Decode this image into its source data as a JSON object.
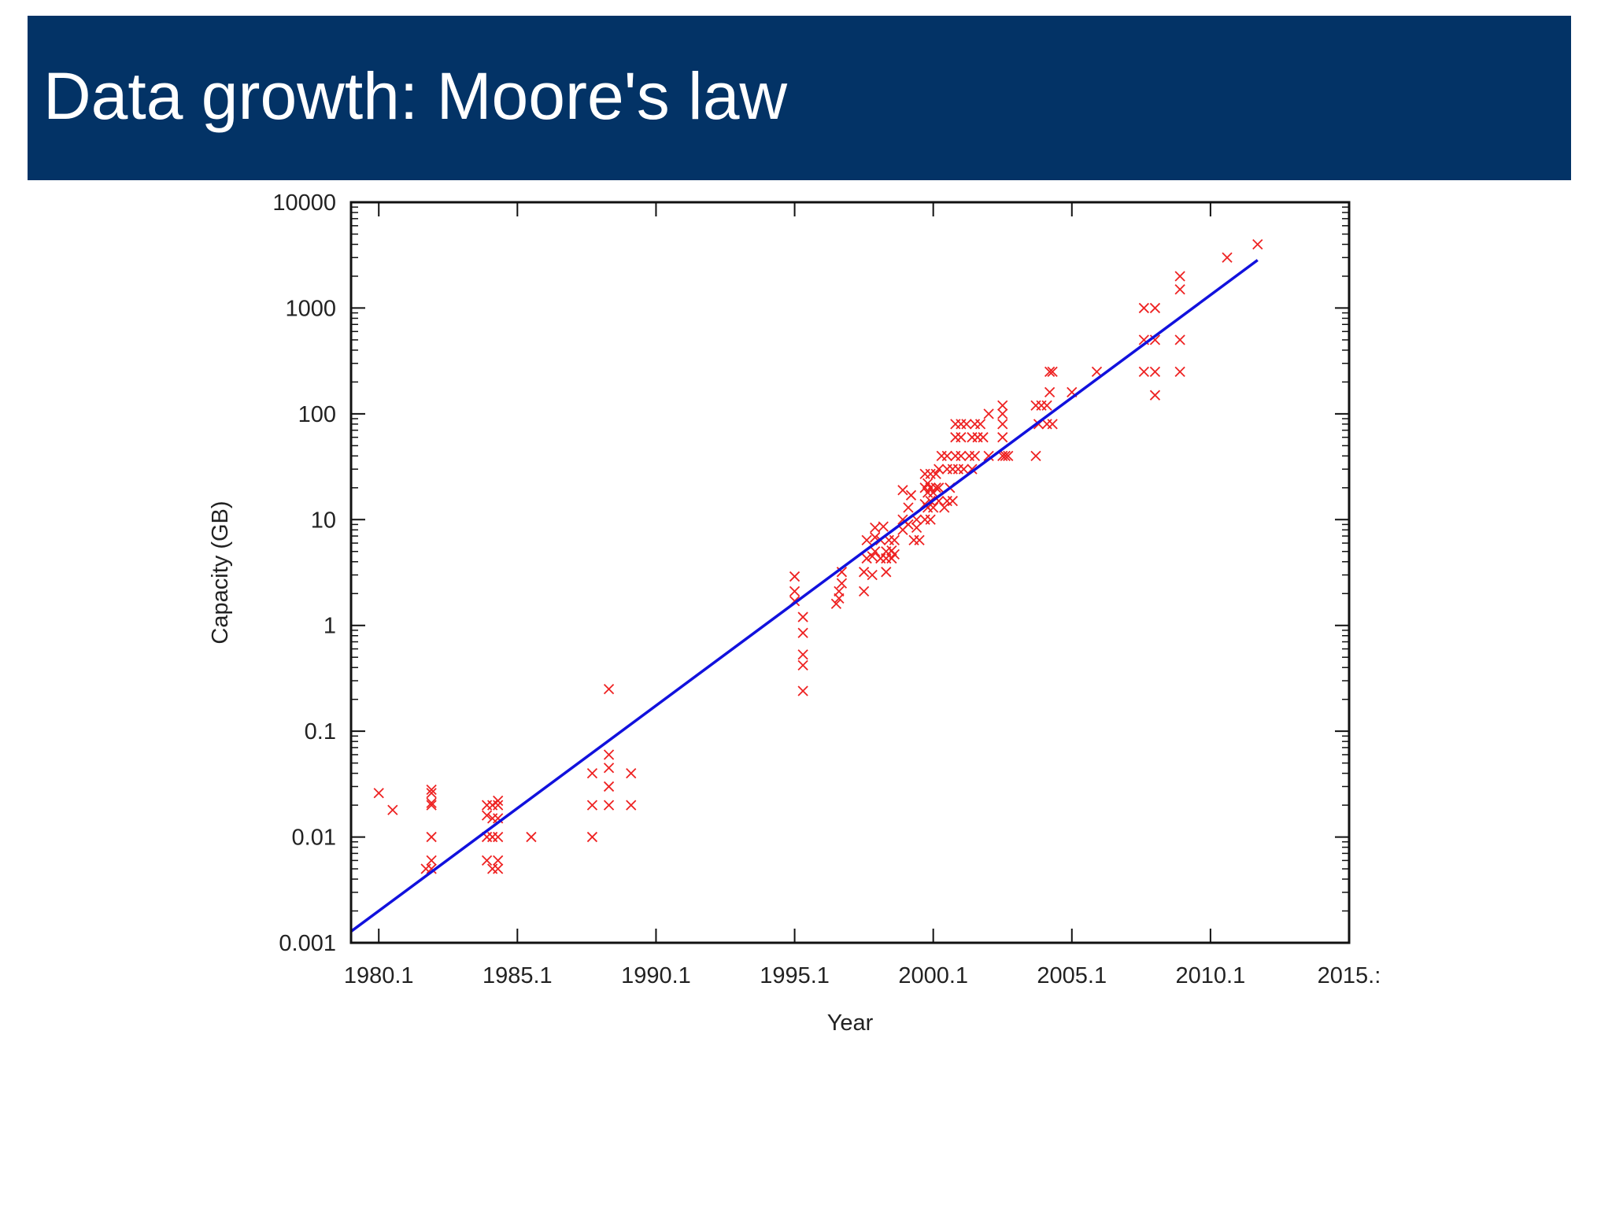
{
  "slide": {
    "title": "Data growth: Moore's law",
    "header_color": "#033366"
  },
  "chart_data": {
    "type": "scatter",
    "title": "",
    "xlabel": "Year",
    "ylabel": "Capacity (GB)",
    "xlim": [
      1979.1,
      2015.1
    ],
    "ylim": [
      0.001,
      10000
    ],
    "y_scale": "log",
    "x_ticks": [
      1980.1,
      1985.1,
      1990.1,
      1995.1,
      2000.1,
      2005.1,
      2010.1,
      2015.1
    ],
    "x_tick_labels": [
      "1980.1",
      "1985.1",
      "1990.1",
      "1995.1",
      "2000.1",
      "2005.1",
      "2010.1",
      "2015.:"
    ],
    "y_ticks": [
      0.001,
      0.01,
      0.1,
      1,
      10,
      100,
      1000,
      10000
    ],
    "y_tick_labels": [
      "0.001",
      "0.01",
      "0.1",
      "1",
      "10",
      "100",
      "1000",
      "10000"
    ],
    "grid": false,
    "legend": "none",
    "colors": {
      "points": "#ee2222",
      "trend": "#1111dd",
      "frame": "#111111"
    },
    "series": [
      {
        "kind": "points",
        "marker": "x",
        "points": [
          [
            1980.1,
            0.026
          ],
          [
            1980.6,
            0.018
          ],
          [
            1981.8,
            0.005
          ],
          [
            1982.0,
            0.005
          ],
          [
            1982.0,
            0.006
          ],
          [
            1982.0,
            0.01
          ],
          [
            1982.0,
            0.02
          ],
          [
            1982.0,
            0.021
          ],
          [
            1982.0,
            0.026
          ],
          [
            1982.0,
            0.028
          ],
          [
            1984.0,
            0.006
          ],
          [
            1984.0,
            0.01
          ],
          [
            1984.0,
            0.016
          ],
          [
            1984.0,
            0.02
          ],
          [
            1984.2,
            0.005
          ],
          [
            1984.2,
            0.01
          ],
          [
            1984.2,
            0.02
          ],
          [
            1984.2,
            0.015
          ],
          [
            1984.4,
            0.005
          ],
          [
            1984.4,
            0.006
          ],
          [
            1984.4,
            0.01
          ],
          [
            1984.4,
            0.015
          ],
          [
            1984.4,
            0.02
          ],
          [
            1984.4,
            0.022
          ],
          [
            1985.6,
            0.01
          ],
          [
            1987.8,
            0.01
          ],
          [
            1987.8,
            0.02
          ],
          [
            1987.8,
            0.04
          ],
          [
            1988.4,
            0.02
          ],
          [
            1988.4,
            0.03
          ],
          [
            1988.4,
            0.045
          ],
          [
            1988.4,
            0.06
          ],
          [
            1988.4,
            0.25
          ],
          [
            1989.2,
            0.02
          ],
          [
            1989.2,
            0.04
          ],
          [
            1995.1,
            1.7
          ],
          [
            1995.1,
            2.1
          ],
          [
            1995.1,
            2.9
          ],
          [
            1995.4,
            0.24
          ],
          [
            1995.4,
            0.42
          ],
          [
            1995.4,
            0.53
          ],
          [
            1995.4,
            0.85
          ],
          [
            1995.4,
            1.2
          ],
          [
            1996.6,
            1.6
          ],
          [
            1996.7,
            1.8
          ],
          [
            1996.7,
            2.1
          ],
          [
            1996.8,
            2.5
          ],
          [
            1996.8,
            3.2
          ],
          [
            1997.6,
            2.1
          ],
          [
            1997.6,
            3.2
          ],
          [
            1997.7,
            4.3
          ],
          [
            1997.7,
            6.4
          ],
          [
            1997.9,
            3.0
          ],
          [
            1997.9,
            4.5
          ],
          [
            1998.0,
            5.0
          ],
          [
            1998.0,
            6.8
          ],
          [
            1998.0,
            8.4
          ],
          [
            1998.2,
            4.3
          ],
          [
            1998.2,
            6.4
          ],
          [
            1998.3,
            8.6
          ],
          [
            1998.4,
            3.2
          ],
          [
            1998.4,
            4.3
          ],
          [
            1998.4,
            5.0
          ],
          [
            1998.5,
            6.4
          ],
          [
            1998.6,
            4.3
          ],
          [
            1998.6,
            5.1
          ],
          [
            1998.7,
            6.4
          ],
          [
            1998.7,
            4.7
          ],
          [
            1999.0,
            8.0
          ],
          [
            1999.0,
            10.0
          ],
          [
            1999.0,
            19.0
          ],
          [
            1999.2,
            9.0
          ],
          [
            1999.2,
            13.0
          ],
          [
            1999.3,
            17.0
          ],
          [
            1999.4,
            6.4
          ],
          [
            1999.5,
            8.4
          ],
          [
            1999.5,
            10.0
          ],
          [
            1999.6,
            6.4
          ],
          [
            1999.8,
            10.0
          ],
          [
            1999.8,
            14.0
          ],
          [
            1999.8,
            20.0
          ],
          [
            1999.8,
            27.0
          ],
          [
            1999.9,
            13.0
          ],
          [
            1999.9,
            18.0
          ],
          [
            1999.9,
            22.0
          ],
          [
            2000.0,
            10.0
          ],
          [
            2000.0,
            15.0
          ],
          [
            2000.0,
            20.0
          ],
          [
            2000.0,
            27.0
          ],
          [
            2000.1,
            13.0
          ],
          [
            2000.1,
            18.0
          ],
          [
            2000.2,
            20.0
          ],
          [
            2000.2,
            27.0
          ],
          [
            2000.3,
            15.0
          ],
          [
            2000.3,
            20.0
          ],
          [
            2000.3,
            30.0
          ],
          [
            2000.4,
            40.0
          ],
          [
            2000.5,
            13.0
          ],
          [
            2000.6,
            15.0
          ],
          [
            2000.6,
            30.0
          ],
          [
            2000.6,
            40.0
          ],
          [
            2000.7,
            20.0
          ],
          [
            2000.8,
            15.0
          ],
          [
            2000.8,
            30.0
          ],
          [
            2000.9,
            40.0
          ],
          [
            2000.9,
            60.0
          ],
          [
            2000.9,
            80.0
          ],
          [
            2001.0,
            30.0
          ],
          [
            2001.1,
            40.0
          ],
          [
            2001.1,
            60.0
          ],
          [
            2001.1,
            80.0
          ],
          [
            2001.2,
            30.0
          ],
          [
            2001.3,
            80.0
          ],
          [
            2001.4,
            40.0
          ],
          [
            2001.5,
            30.0
          ],
          [
            2001.5,
            60.0
          ],
          [
            2001.6,
            40.0
          ],
          [
            2001.6,
            80.0
          ],
          [
            2001.7,
            60.0
          ],
          [
            2001.8,
            80.0
          ],
          [
            2001.9,
            60.0
          ],
          [
            2002.1,
            40.0
          ],
          [
            2002.1,
            100.0
          ],
          [
            2002.6,
            40.0
          ],
          [
            2002.6,
            60.0
          ],
          [
            2002.6,
            80.0
          ],
          [
            2002.6,
            100.0
          ],
          [
            2002.6,
            120.0
          ],
          [
            2002.7,
            40.0
          ],
          [
            2002.8,
            40.0
          ],
          [
            2003.8,
            40.0
          ],
          [
            2003.8,
            120.0
          ],
          [
            2003.9,
            80.0
          ],
          [
            2004.0,
            120.0
          ],
          [
            2004.2,
            80.0
          ],
          [
            2004.2,
            120.0
          ],
          [
            2004.3,
            160.0
          ],
          [
            2004.3,
            250.0
          ],
          [
            2004.4,
            80.0
          ],
          [
            2004.4,
            250.0
          ],
          [
            2005.1,
            160.0
          ],
          [
            2006.0,
            250.0
          ],
          [
            2007.7,
            250.0
          ],
          [
            2007.7,
            500.0
          ],
          [
            2007.7,
            1000.0
          ],
          [
            2008.1,
            250.0
          ],
          [
            2008.1,
            500.0
          ],
          [
            2008.1,
            1000.0
          ],
          [
            2008.1,
            150.0
          ],
          [
            2009.0,
            250.0
          ],
          [
            2009.0,
            500.0
          ],
          [
            2009.0,
            1500.0
          ],
          [
            2009.0,
            2000.0
          ],
          [
            2010.7,
            3000.0
          ],
          [
            2011.8,
            4000.0
          ]
        ]
      },
      {
        "kind": "trend",
        "points": [
          [
            1979.1,
            0.00128
          ],
          [
            2011.8,
            2840.0
          ]
        ]
      }
    ]
  }
}
